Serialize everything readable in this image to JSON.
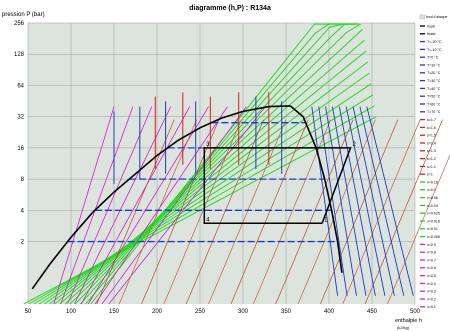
{
  "chart_data": {
    "type": "line",
    "title": "diagramme (h,P) : R134a",
    "ylabel": "pression P (bar)",
    "xlabel": "enthalpie h",
    "xunit": "(kJ/kg)",
    "xlim": [
      50,
      500
    ],
    "ylim": [
      0.5,
      256
    ],
    "yscale": "log",
    "grid": true,
    "background_color": "#dde3dd",
    "y_ticks": [
      "256",
      "128",
      "64",
      "32",
      "16",
      "8",
      "4",
      "2"
    ],
    "y_tick_values": [
      256,
      128,
      64,
      32,
      16,
      8,
      4,
      2
    ],
    "x_ticks": [
      "50",
      "100",
      "150",
      "200",
      "250",
      "300",
      "350",
      "400",
      "450",
      "500"
    ],
    "x_tick_values": [
      50,
      100,
      150,
      200,
      250,
      300,
      350,
      400,
      450,
      500
    ],
    "series": [
      {
        "name": "hsat",
        "color": "#000000",
        "x": [
          55,
          75,
          100,
          125,
          150,
          175,
          200,
          225,
          250,
          275,
          300,
          330,
          355
        ],
        "y": [
          0.7,
          1.2,
          2.2,
          3.8,
          6.0,
          9.0,
          13.5,
          19.0,
          25.0,
          31.0,
          36.0,
          40.0,
          40.6
        ]
      },
      {
        "name": "hsatv",
        "color": "#000000",
        "x": [
          355,
          370,
          385,
          395,
          403,
          410,
          415
        ],
        "y": [
          40.6,
          32.0,
          16.0,
          8.0,
          4.0,
          2.0,
          1.0
        ]
      }
    ],
    "cycle": {
      "points": [
        "1",
        "2",
        "3",
        "4"
      ],
      "h": [
        392,
        425,
        255,
        255
      ],
      "p": [
        3.0,
        16.0,
        16.0,
        3.0
      ]
    }
  },
  "legend": {
    "title": "fond d'abaque",
    "items": [
      {
        "name": "hsatl",
        "color": "#000000"
      },
      {
        "name": "hsatv",
        "color": "#000000"
      },
      {
        "name": "T=-20 °C",
        "color": "#1a3cc8"
      },
      {
        "name": "T=-10 °C",
        "color": "#1a3cc8"
      },
      {
        "name": "T=0 °C",
        "color": "#1a3cc8"
      },
      {
        "name": "T=10 °C",
        "color": "#1a3cc8"
      },
      {
        "name": "T=20 °C",
        "color": "#1a3cc8"
      },
      {
        "name": "T=30 °C",
        "color": "#1a3cc8"
      },
      {
        "name": "T=40 °C",
        "color": "#1a3cc8"
      },
      {
        "name": "T=50 °C",
        "color": "#1a3cc8"
      },
      {
        "name": "T=60 °C",
        "color": "#1a3cc8"
      },
      {
        "name": "T=70 °C",
        "color": "#1a3cc8"
      },
      {
        "name": "s=1.7",
        "color": "#d42020"
      },
      {
        "name": "s=1.6",
        "color": "#d42020"
      },
      {
        "name": "s=1.5",
        "color": "#d42020"
      },
      {
        "name": "s=1.4",
        "color": "#d42020"
      },
      {
        "name": "s=1.3",
        "color": "#d42020"
      },
      {
        "name": "s=1.2",
        "color": "#d42020"
      },
      {
        "name": "s=1.1",
        "color": "#d42020"
      },
      {
        "name": "s=1",
        "color": "#d42020"
      },
      {
        "name": "v=0.16",
        "color": "#22cc22"
      },
      {
        "name": "v=0.1",
        "color": "#22cc22"
      },
      {
        "name": "v=0.06",
        "color": "#22cc22"
      },
      {
        "name": "v=0.04",
        "color": "#22cc22"
      },
      {
        "name": "v=0.025",
        "color": "#22cc22"
      },
      {
        "name": "v=0.016",
        "color": "#22cc22"
      },
      {
        "name": "v=0.01",
        "color": "#22cc22"
      },
      {
        "name": "v=0.006",
        "color": "#22cc22"
      },
      {
        "name": "x=0.9",
        "color": "#d020d0"
      },
      {
        "name": "x=0.8",
        "color": "#d020d0"
      },
      {
        "name": "x=0.7",
        "color": "#d020d0"
      },
      {
        "name": "x=0.6",
        "color": "#d020d0"
      },
      {
        "name": "x=0.5",
        "color": "#d020d0"
      },
      {
        "name": "x=0.4",
        "color": "#d020d0"
      },
      {
        "name": "x=0.3",
        "color": "#d020d0"
      },
      {
        "name": "x=0.2",
        "color": "#d020d0"
      },
      {
        "name": "x=0.1",
        "color": "#d020d0"
      }
    ]
  }
}
